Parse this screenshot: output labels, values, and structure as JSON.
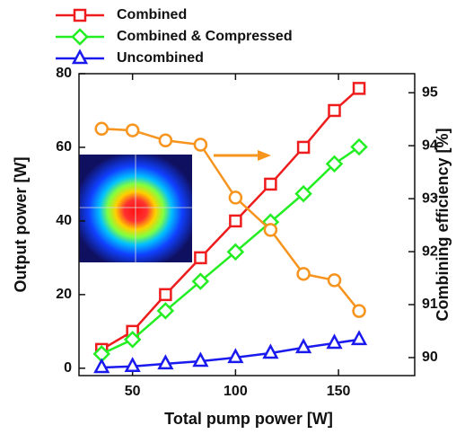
{
  "chart_data": {
    "type": "line",
    "x_label": "Total pump power  [W]",
    "y_label": "Output power  [W]",
    "y2_label": "Combining efficiency  [%]",
    "x": [
      35,
      50,
      66,
      83,
      100,
      117,
      133,
      148,
      160
    ],
    "xlim": [
      24,
      187
    ],
    "xticks": [
      50,
      100,
      150
    ],
    "ylim": [
      -2,
      80
    ],
    "yticks": [
      0,
      20,
      40,
      60,
      80
    ],
    "y2lim": [
      89.66,
      95.36
    ],
    "y2ticks": [
      90,
      91,
      92,
      93,
      94,
      95
    ],
    "series": [
      {
        "name": "Combined",
        "color": "#ee1c1c",
        "marker": "square",
        "values": [
          5.1,
          10,
          20,
          30,
          40,
          50,
          60,
          70,
          76
        ]
      },
      {
        "name": "Combined & Compressed",
        "color": "#22ee22",
        "marker": "diamond",
        "values": [
          3.9,
          7.8,
          15.6,
          23.6,
          31.6,
          39.7,
          47.4,
          55.5,
          60.1
        ]
      },
      {
        "name": "Uncombined",
        "color": "#1a1aee",
        "marker": "triangle",
        "values": [
          0.2,
          0.5,
          1.2,
          1.9,
          2.9,
          4.1,
          5.6,
          6.8,
          7.8
        ]
      },
      {
        "color": "#f7941d",
        "marker": "circle",
        "axis": "y2",
        "values": [
          94.32,
          94.29,
          94.1,
          94.02,
          93.02,
          92.41,
          91.58,
          91.46,
          90.88
        ]
      }
    ]
  }
}
